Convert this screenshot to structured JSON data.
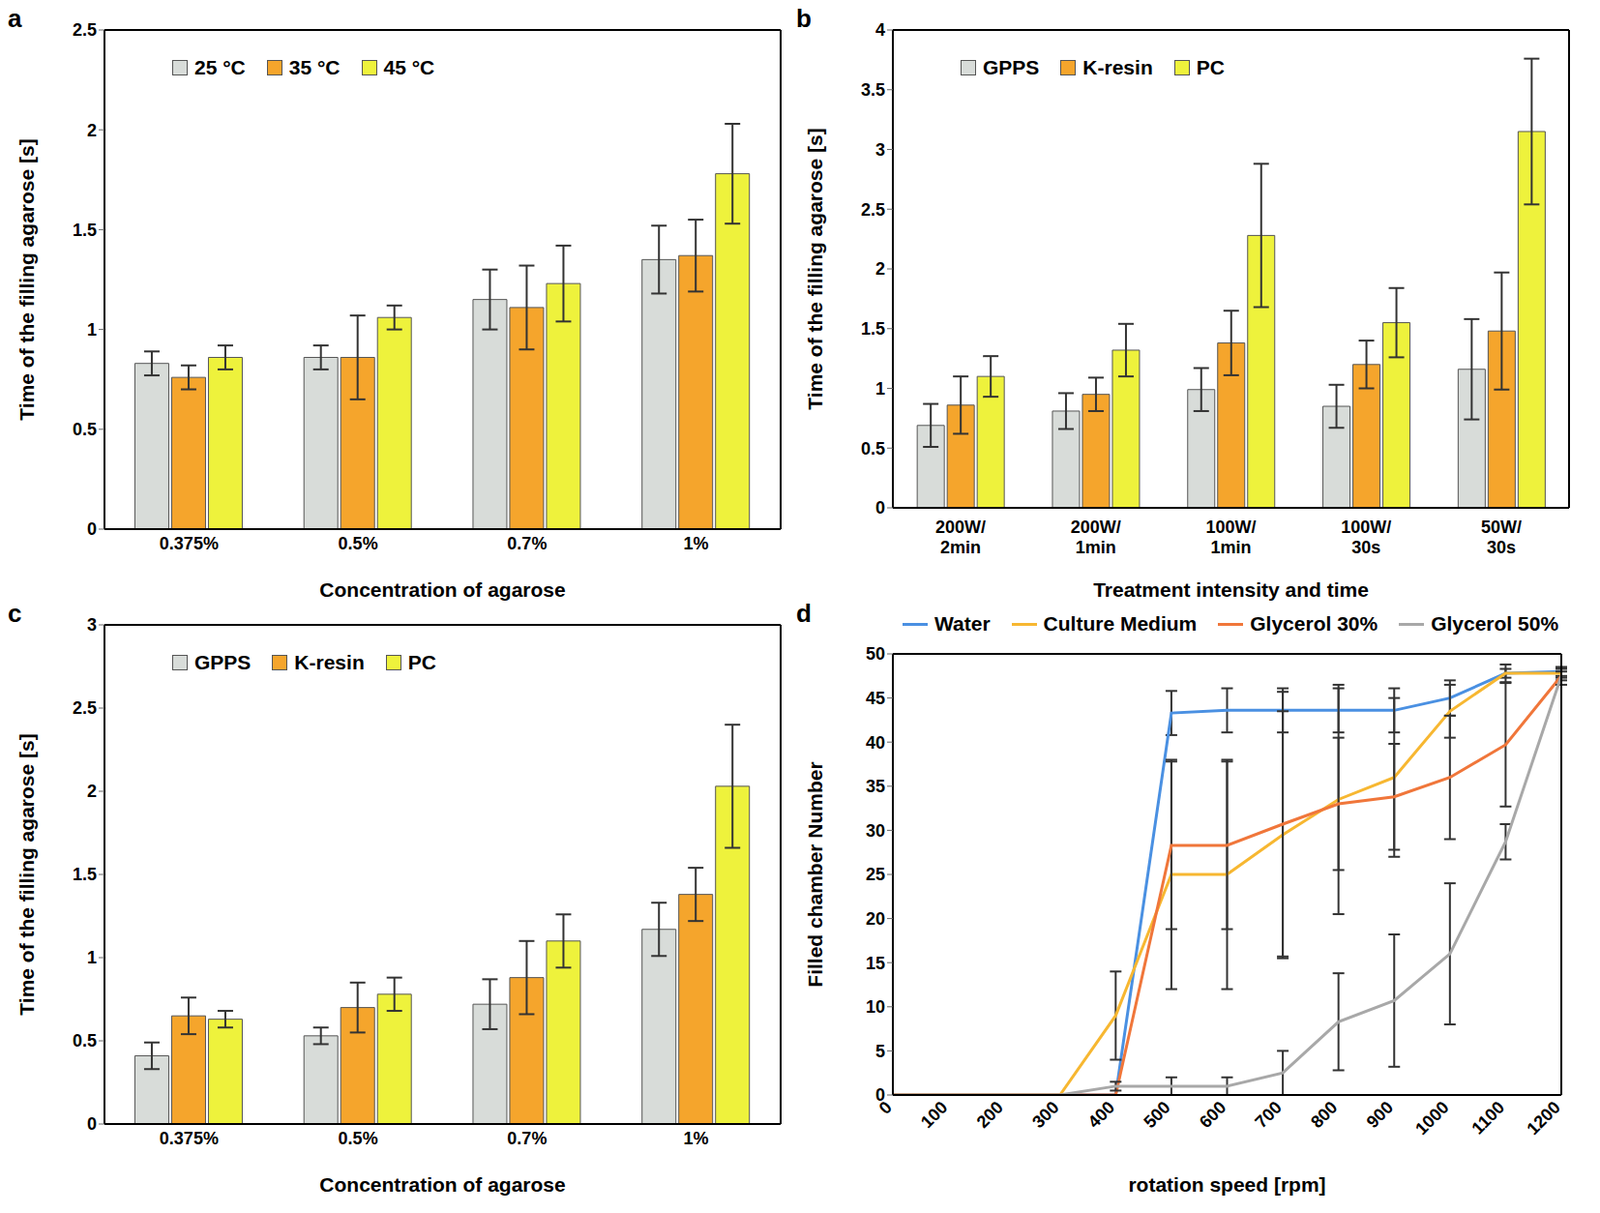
{
  "chart_data": [
    {
      "type": "bar",
      "title": "a",
      "x_label": "Concentration of agarose",
      "y_label": "Time of the filling agarose [s]",
      "categories": [
        "0.375%",
        "0.5%",
        "0.7%",
        "1%"
      ],
      "series": [
        {
          "name": "25 °C",
          "color": "#d8dcd9",
          "values": [
            0.83,
            0.86,
            1.15,
            1.35
          ],
          "errors": [
            0.06,
            0.06,
            0.15,
            0.17
          ]
        },
        {
          "name": "35 °C",
          "color": "#f5a52c",
          "values": [
            0.76,
            0.86,
            1.11,
            1.37
          ],
          "errors": [
            0.06,
            0.21,
            0.21,
            0.18
          ]
        },
        {
          "name": "45 °C",
          "color": "#eef23c",
          "values": [
            0.86,
            1.06,
            1.23,
            1.78
          ],
          "errors": [
            0.06,
            0.06,
            0.19,
            0.25
          ]
        }
      ],
      "ylim": [
        0,
        2.5
      ],
      "yticks": [
        0,
        0.5,
        1,
        1.5,
        2,
        2.5
      ],
      "legend": "upper left"
    },
    {
      "type": "bar",
      "title": "b",
      "x_label": "Treatment intensity and time",
      "y_label": "Time of the filling agarose [s]",
      "categories": [
        "200W/2min",
        "200W/1min",
        "100W/1min",
        "100W/30s",
        "50W/30s"
      ],
      "series": [
        {
          "name": "GPPS",
          "color": "#d8dcd9",
          "values": [
            0.69,
            0.81,
            0.99,
            0.85,
            1.16
          ],
          "errors": [
            0.18,
            0.15,
            0.18,
            0.18,
            0.42
          ]
        },
        {
          "name": "K-resin",
          "color": "#f5a52c",
          "values": [
            0.86,
            0.95,
            1.38,
            1.2,
            1.48
          ],
          "errors": [
            0.24,
            0.14,
            0.27,
            0.2,
            0.49
          ]
        },
        {
          "name": "PC",
          "color": "#eef23c",
          "values": [
            1.1,
            1.32,
            2.28,
            1.55,
            3.15
          ],
          "errors": [
            0.17,
            0.22,
            0.6,
            0.29,
            0.61
          ]
        }
      ],
      "ylim": [
        0,
        4
      ],
      "yticks": [
        0,
        0.5,
        1,
        1.5,
        2,
        2.5,
        3,
        3.5,
        4
      ],
      "legend": "upper left"
    },
    {
      "type": "bar",
      "title": "c",
      "x_label": "Concentration of agarose",
      "y_label": "Time of the filling agarose [s]",
      "categories": [
        "0.375%",
        "0.5%",
        "0.7%",
        "1%"
      ],
      "series": [
        {
          "name": "GPPS",
          "color": "#d8dcd9",
          "values": [
            0.41,
            0.53,
            0.72,
            1.17
          ],
          "errors": [
            0.08,
            0.05,
            0.15,
            0.16
          ]
        },
        {
          "name": "K-resin",
          "color": "#f5a52c",
          "values": [
            0.65,
            0.7,
            0.88,
            1.38
          ],
          "errors": [
            0.11,
            0.15,
            0.22,
            0.16
          ]
        },
        {
          "name": "PC",
          "color": "#eef23c",
          "values": [
            0.63,
            0.78,
            1.1,
            2.03
          ],
          "errors": [
            0.05,
            0.1,
            0.16,
            0.37
          ]
        }
      ],
      "ylim": [
        0,
        3
      ],
      "yticks": [
        0,
        0.5,
        1,
        1.5,
        2,
        2.5,
        3
      ],
      "legend": "upper left"
    },
    {
      "type": "line",
      "title": "d",
      "x_label": "rotation speed [rpm]",
      "y_label": "Filled chamber Number",
      "x": [
        0,
        100,
        200,
        300,
        400,
        500,
        600,
        700,
        800,
        900,
        1000,
        1100,
        1200
      ],
      "series": [
        {
          "name": "Water",
          "color": "#4a90e2",
          "values": [
            0,
            0,
            0,
            0,
            0,
            43.3,
            43.6,
            43.6,
            43.6,
            43.6,
            45,
            47.8,
            48
          ],
          "errors": [
            0,
            0,
            0,
            0,
            0,
            2.5,
            2.5,
            2.5,
            2.5,
            2.5,
            2,
            0.5,
            0.5
          ]
        },
        {
          "name": "Culture Medium",
          "color": "#f7b731",
          "values": [
            0,
            0,
            0,
            0,
            9,
            25,
            25,
            29.5,
            33.5,
            36,
            43.5,
            47.8,
            47.8
          ],
          "errors": [
            0,
            0,
            0,
            0,
            5,
            13,
            13,
            14,
            13,
            9,
            3,
            1,
            0.5
          ]
        },
        {
          "name": "Glycerol 30%",
          "color": "#f0763a",
          "values": [
            0,
            0,
            0,
            0,
            0,
            28.3,
            28.3,
            30.7,
            33,
            33.8,
            36,
            39.7,
            47.5
          ],
          "errors": [
            0,
            0,
            0,
            0,
            0,
            9.5,
            9.5,
            15,
            7.5,
            6,
            7,
            7,
            0.5
          ]
        },
        {
          "name": "Glycerol 50%",
          "color": "#a8a8a8",
          "values": [
            0,
            0,
            0,
            0,
            1,
            1,
            1,
            2.5,
            8.3,
            10.7,
            16,
            28.7,
            47.5
          ],
          "errors": [
            0,
            0,
            0,
            0,
            0.5,
            1,
            1,
            2.5,
            5.5,
            7.5,
            8,
            2,
            1
          ]
        }
      ],
      "xlim": [
        0,
        1200
      ],
      "xticks": [
        0,
        100,
        200,
        300,
        400,
        500,
        600,
        700,
        800,
        900,
        1000,
        1100,
        1200
      ],
      "ylim": [
        0,
        50
      ],
      "yticks": [
        0,
        5,
        10,
        15,
        20,
        25,
        30,
        35,
        40,
        45,
        50
      ],
      "legend": "top"
    }
  ]
}
